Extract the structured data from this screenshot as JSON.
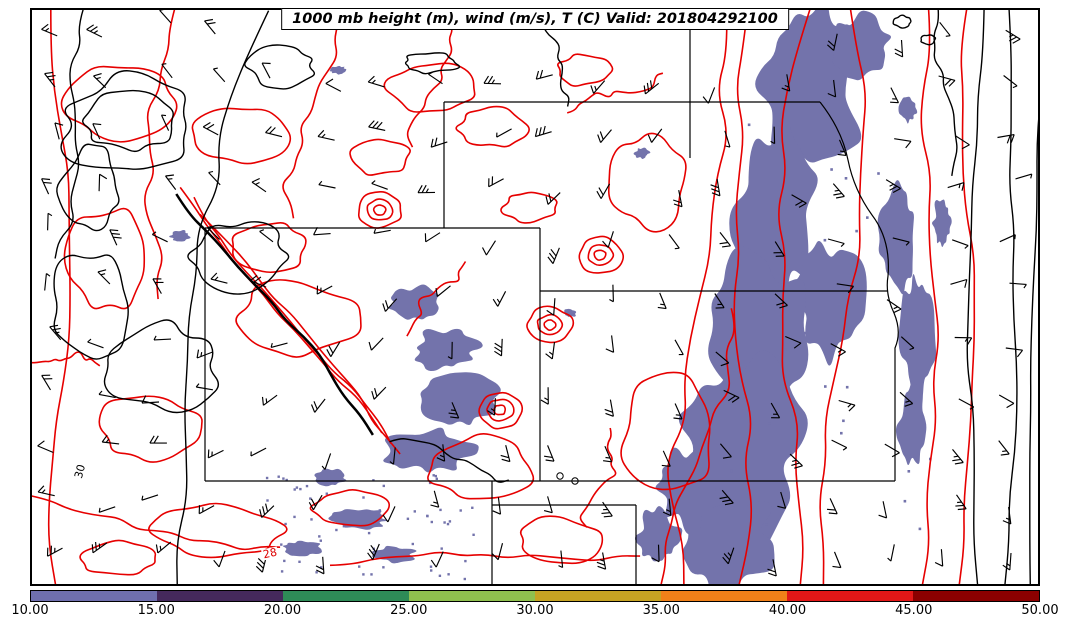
{
  "header": {
    "title": "1000 mb height (m), wind (m/s), T (C) Valid: 201804292100"
  },
  "map": {
    "shading_color": "#7373ab",
    "temp_contour_color": "#e60000",
    "height_contour_color": "#000000",
    "contour_labels": [
      {
        "text": "30",
        "color": "#000000",
        "field": "height"
      },
      {
        "text": "28",
        "color": "#e60000",
        "field": "temperature"
      }
    ]
  },
  "colorbar": {
    "ticks": [
      "10.00",
      "15.00",
      "20.00",
      "25.00",
      "30.00",
      "35.00",
      "40.00",
      "45.00",
      "50.00"
    ],
    "segments": [
      {
        "range": "10-15",
        "color": "#6f6fae"
      },
      {
        "range": "15-20",
        "color": "#45295c"
      },
      {
        "range": "20-25",
        "color": "#2e8b57"
      },
      {
        "range": "25-30",
        "color": "#8fc04e"
      },
      {
        "range": "30-35",
        "color": "#c6a323"
      },
      {
        "range": "35-40",
        "color": "#f08019"
      },
      {
        "range": "40-45",
        "color": "#e11717"
      },
      {
        "range": "45-50",
        "color": "#8b0000"
      }
    ]
  },
  "chart_data": {
    "type": "heatmap",
    "subtype": "meteorological contour map with shaded field, contour lines and wind barbs over US state outlines",
    "title": "1000 mb height (m), wind (m/s), T (C) Valid: 201804292100",
    "pressure_level": "1000 mb",
    "valid_time": "201804292100",
    "fields": [
      {
        "name": "geopotential height",
        "units": "m",
        "rendering": "black contour lines",
        "visible_contour_labels": [
          30
        ]
      },
      {
        "name": "temperature",
        "units": "C",
        "rendering": "red contour lines",
        "visible_contour_labels": [
          28
        ]
      },
      {
        "name": "wind",
        "units": "m/s",
        "rendering": "black wind barbs"
      },
      {
        "name": "shaded field",
        "rendering": "slate-blue filled patches matching the 10-15 colorbar bin"
      }
    ],
    "colorbar": {
      "orientation": "horizontal",
      "position": "bottom",
      "min": 10,
      "max": 50,
      "interval": 5,
      "tick_labels": [
        "10.00",
        "15.00",
        "20.00",
        "25.00",
        "30.00",
        "35.00",
        "40.00",
        "45.00",
        "50.00"
      ],
      "segment_colors": [
        "#6f6fae",
        "#45295c",
        "#2e8b57",
        "#8fc04e",
        "#c6a323",
        "#f08019",
        "#e11717",
        "#8b0000"
      ]
    },
    "grid": false,
    "legend": false,
    "basemap": "state boundary rectangles visible (central Rockies / Great Plains)"
  }
}
